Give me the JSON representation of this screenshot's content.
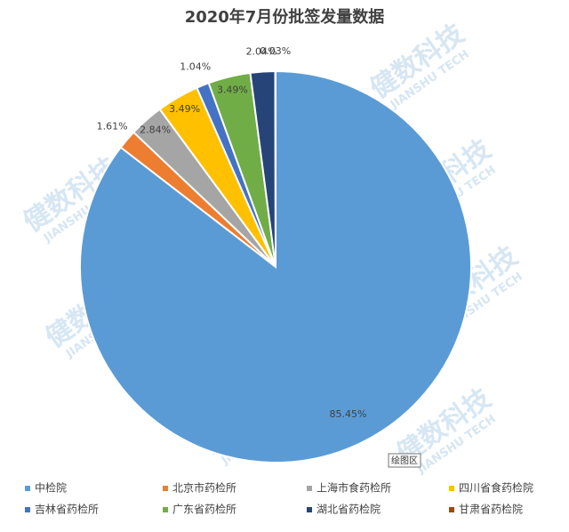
{
  "chart_data": {
    "type": "pie",
    "title": "2020年7月份批签发量数据",
    "categories": [
      "中检院",
      "北京市药检所",
      "上海市食药检所",
      "四川省食药检院",
      "吉林省药检所",
      "广东省药检所",
      "湖北省药检院",
      "甘肃省药检院"
    ],
    "values": [
      85.45,
      1.61,
      2.84,
      3.49,
      1.04,
      3.49,
      2.04,
      0.03
    ],
    "value_labels": [
      "85.45%",
      "1.61%",
      "2.84%",
      "3.49%",
      "1.04%",
      "3.49%",
      "2.04%",
      "0.03%"
    ],
    "colors": [
      "#5b9bd5",
      "#ed7d31",
      "#a5a5a5",
      "#ffc000",
      "#4472c4",
      "#70ad47",
      "#264478",
      "#9e480e"
    ],
    "legend": "bottom",
    "tooltip": "绘图区"
  },
  "watermark": {
    "cn": "健数科技",
    "en": "JIANSHU TECH"
  }
}
